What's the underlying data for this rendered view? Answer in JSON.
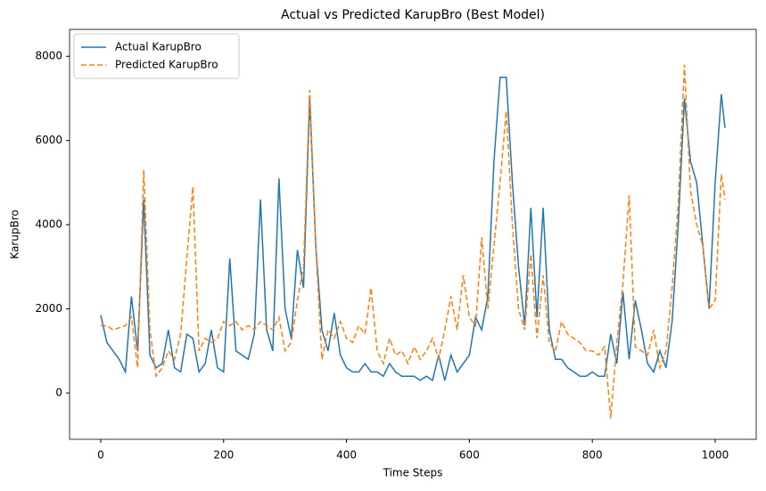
{
  "chart_data": {
    "type": "line",
    "title": "Actual vs Predicted KarupBro (Best Model)",
    "x_label": "Time Steps",
    "y_label": "KarupBro",
    "x": [
      0,
      10,
      20,
      30,
      40,
      50,
      60,
      70,
      80,
      90,
      100,
      110,
      120,
      130,
      140,
      150,
      160,
      170,
      180,
      190,
      200,
      210,
      220,
      230,
      240,
      250,
      260,
      270,
      280,
      290,
      300,
      310,
      320,
      330,
      340,
      350,
      360,
      370,
      380,
      390,
      400,
      410,
      420,
      430,
      440,
      450,
      460,
      470,
      480,
      490,
      500,
      510,
      520,
      530,
      540,
      550,
      560,
      570,
      580,
      590,
      600,
      610,
      620,
      630,
      640,
      650,
      660,
      670,
      680,
      690,
      700,
      710,
      720,
      730,
      740,
      750,
      760,
      770,
      780,
      790,
      800,
      810,
      820,
      830,
      840,
      850,
      860,
      870,
      880,
      890,
      900,
      910,
      920,
      930,
      940,
      950,
      960,
      970,
      980,
      990,
      1000,
      1010,
      1016
    ],
    "series": [
      {
        "name": "Actual KarupBro",
        "color": "#1f77b4",
        "dash": "solid",
        "values": [
          1850,
          1200,
          1000,
          800,
          500,
          2300,
          1000,
          4600,
          900,
          600,
          700,
          1500,
          600,
          500,
          1400,
          1300,
          500,
          700,
          1500,
          600,
          500,
          3200,
          1000,
          900,
          800,
          1400,
          4600,
          1500,
          1000,
          5100,
          2000,
          1300,
          3400,
          2500,
          7000,
          3500,
          1500,
          1000,
          1900,
          900,
          600,
          500,
          500,
          700,
          500,
          500,
          400,
          700,
          500,
          400,
          400,
          400,
          300,
          400,
          300,
          900,
          300,
          900,
          500,
          700,
          900,
          1800,
          1500,
          2300,
          5500,
          7500,
          7500,
          5000,
          3000,
          1600,
          4400,
          1800,
          4400,
          1500,
          800,
          800,
          600,
          500,
          400,
          400,
          500,
          400,
          400,
          1400,
          700,
          2400,
          800,
          2200,
          1500,
          700,
          500,
          1000,
          600,
          1700,
          4000,
          7000,
          5500,
          5000,
          3500,
          2000,
          5000,
          7100,
          6300
        ]
      },
      {
        "name": "Predicted KarupBro",
        "color": "#ff7f0e",
        "dash": "dashed",
        "values": [
          1600,
          1600,
          1500,
          1550,
          1600,
          1800,
          600,
          5300,
          1500,
          400,
          600,
          1000,
          800,
          1400,
          3200,
          4900,
          1000,
          1300,
          1200,
          1300,
          1700,
          1600,
          1700,
          1500,
          1600,
          1500,
          1700,
          1600,
          1500,
          1800,
          1000,
          1200,
          2200,
          3000,
          7200,
          3500,
          800,
          1500,
          1300,
          1700,
          1300,
          1200,
          1600,
          1400,
          2500,
          1000,
          700,
          1300,
          900,
          1000,
          700,
          1100,
          800,
          1000,
          1300,
          800,
          1500,
          2300,
          1500,
          2800,
          1800,
          1600,
          3700,
          2000,
          3500,
          5000,
          6700,
          4000,
          2000,
          1500,
          3300,
          1300,
          2800,
          1200,
          1000,
          1700,
          1400,
          1300,
          1200,
          1000,
          1000,
          900,
          1100,
          -600,
          1200,
          2600,
          4700,
          1100,
          1000,
          900,
          1500,
          600,
          1000,
          2500,
          4500,
          7800,
          4800,
          4000,
          3500,
          2000,
          2200,
          5200,
          4600
        ]
      }
    ],
    "xlim": [
      -50.8,
      1066.8
    ],
    "xticks": [
      0,
      200,
      400,
      600,
      800,
      1000
    ],
    "ylim": [
      -1100,
      8640
    ],
    "yticks": [
      0,
      2000,
      4000,
      6000,
      8000
    ],
    "grid": false,
    "legend": "upper left"
  }
}
